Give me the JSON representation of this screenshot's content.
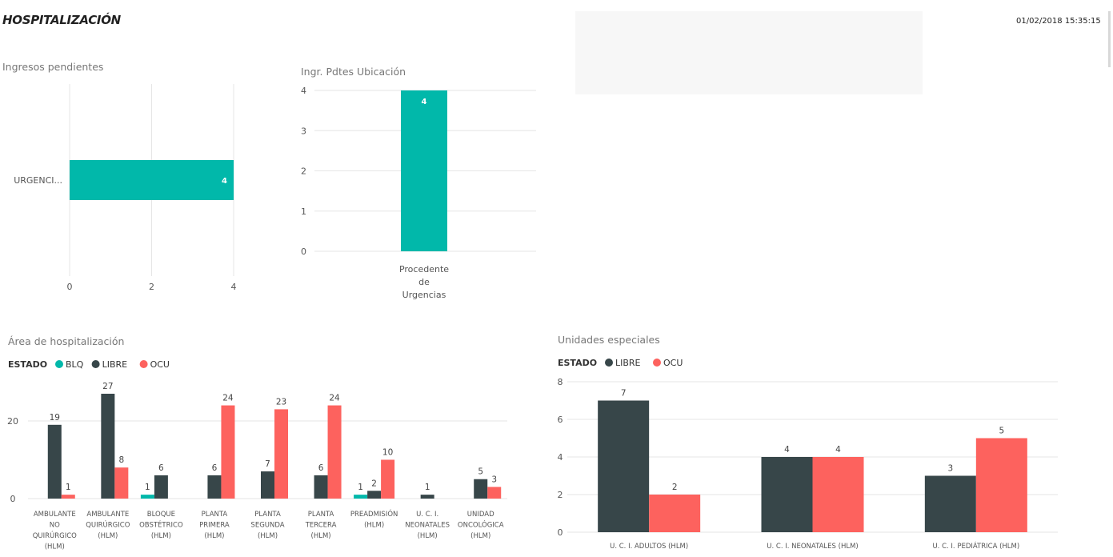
{
  "header": {
    "title": "HOSPITALIZACIÓN",
    "timestamp": "01/02/2018 15:35:15"
  },
  "colors": {
    "teal": "#01B8AA",
    "dark": "#374649",
    "red": "#FD625E",
    "grid": "#e6e6e6",
    "title": "#777777",
    "text": "#555555"
  },
  "chart_data": [
    {
      "id": "ingresos",
      "type": "bar",
      "orientation": "horizontal",
      "title": "Ingresos pendientes",
      "categories": [
        "URGENCI..."
      ],
      "values": [
        4
      ],
      "xlim": [
        0,
        4
      ],
      "ticks": [
        0,
        2,
        4
      ],
      "grid": true
    },
    {
      "id": "ubicacion",
      "type": "bar",
      "title": "Ingr. Pdtes Ubicación",
      "categories": [
        "Procedente de Urgencias"
      ],
      "category_lines": [
        [
          "Procedente",
          "de",
          "Urgencias"
        ]
      ],
      "values": [
        4
      ],
      "ylim": [
        0,
        4
      ],
      "ticks": [
        0,
        1,
        2,
        3,
        4
      ],
      "grid": true
    },
    {
      "id": "area",
      "type": "bar",
      "title": "Área de hospitalización",
      "legend_title": "ESTADO",
      "legend_position": "top-left",
      "categories": [
        "AMBULANTE NO QUIRÚRGICO (HLM)",
        "AMBULANTE QUIRÚRGICO (HLM)",
        "BLOQUE OBSTÉTRICO (HLM)",
        "PLANTA PRIMERA (HLM)",
        "PLANTA SEGUNDA (HLM)",
        "PLANTA TERCERA (HLM)",
        "PREADMISIÓN (HLM)",
        "U. C. I. NEONATALES (HLM)",
        "UNIDAD ONCOLÓGICA (HLM)"
      ],
      "category_lines": [
        [
          "AMBULANTE",
          "NO",
          "QUIRÚRGICO",
          "(HLM)"
        ],
        [
          "AMBULANTE",
          "QUIRÚRGICO",
          "(HLM)"
        ],
        [
          "BLOQUE",
          "OBSTÉTRICO",
          "(HLM)"
        ],
        [
          "PLANTA",
          "PRIMERA",
          "(HLM)"
        ],
        [
          "PLANTA",
          "SEGUNDA",
          "(HLM)"
        ],
        [
          "PLANTA",
          "TERCERA",
          "(HLM)"
        ],
        [
          "PREADMISIÓN",
          "(HLM)"
        ],
        [
          "U. C. I.",
          "NEONATALES",
          "(HLM)"
        ],
        [
          "UNIDAD",
          "ONCOLÓGICA",
          "(HLM)"
        ]
      ],
      "series": [
        {
          "name": "BLQ",
          "color": "#01B8AA",
          "values": [
            null,
            null,
            1,
            null,
            null,
            null,
            1,
            null,
            null
          ]
        },
        {
          "name": "LIBRE",
          "color": "#374649",
          "values": [
            19,
            27,
            6,
            6,
            7,
            6,
            2,
            1,
            5
          ]
        },
        {
          "name": "OCU",
          "color": "#FD625E",
          "values": [
            1,
            8,
            null,
            24,
            23,
            24,
            10,
            null,
            3
          ]
        }
      ],
      "ylim": [
        0,
        27
      ],
      "ticks": [
        0,
        20
      ],
      "grid": true
    },
    {
      "id": "especiales",
      "type": "bar",
      "title": "Unidades especiales",
      "legend_title": "ESTADO",
      "legend_position": "top-left",
      "categories": [
        "U. C. I. ADULTOS (HLM)",
        "U. C. I. NEONATALES (HLM)",
        "U. C. I. PEDIÁTRICA (HLM)"
      ],
      "series": [
        {
          "name": "LIBRE",
          "color": "#374649",
          "values": [
            7,
            4,
            3
          ]
        },
        {
          "name": "OCU",
          "color": "#FD625E",
          "values": [
            2,
            4,
            5
          ]
        }
      ],
      "ylim": [
        0,
        8
      ],
      "ticks": [
        0,
        2,
        4,
        6,
        8
      ],
      "grid": true
    }
  ]
}
